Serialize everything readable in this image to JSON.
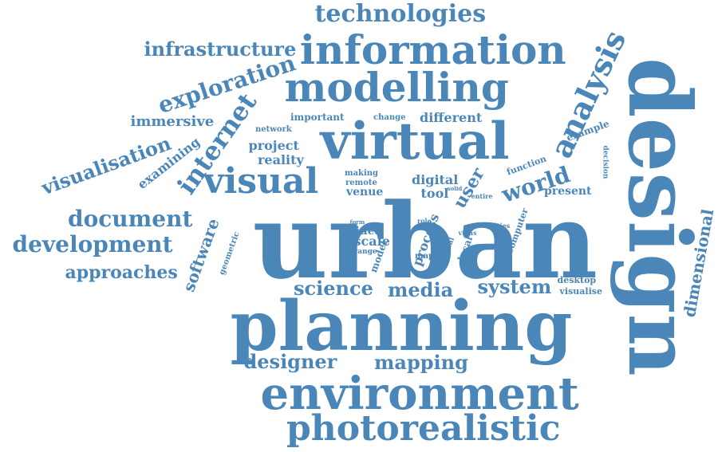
{
  "cloud": {
    "color": "#4a86b8",
    "words": [
      "technologies",
      "information",
      "infrastructure",
      "exploration",
      "modelling",
      "analysis",
      "design",
      "immersive",
      "internet",
      "important",
      "change",
      "different",
      "network",
      "virtual",
      "project",
      "reality",
      "visualisation",
      "examining",
      "visual",
      "example",
      "decision",
      "function",
      "world",
      "making",
      "remote",
      "venue",
      "digital",
      "tool",
      "user",
      "solid",
      "entire",
      "present",
      "document",
      "development",
      "approaches",
      "software",
      "geometric",
      "urban",
      "form",
      "report",
      "idea",
      "scale",
      "range",
      "model",
      "role",
      "way",
      "process",
      "link",
      "vidas",
      "cities",
      "computer",
      "local",
      "spatial",
      "map",
      "dimensional",
      "science",
      "media",
      "system",
      "desktop",
      "visualise",
      "planning",
      "designer",
      "mapping",
      "environment",
      "photorealistic"
    ]
  }
}
